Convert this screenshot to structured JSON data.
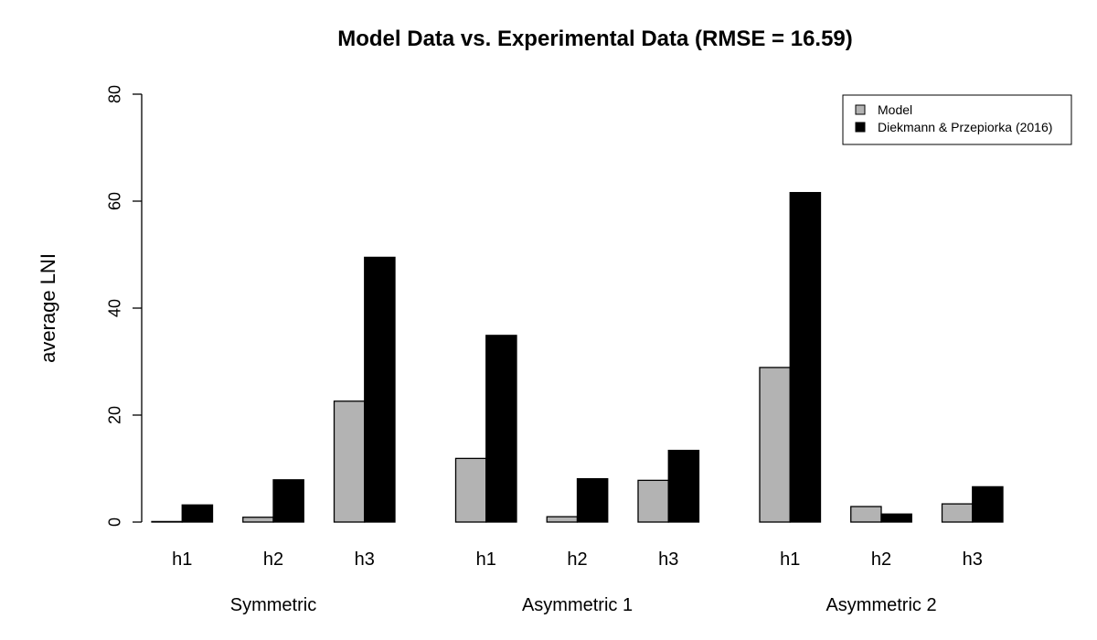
{
  "chart_data": {
    "type": "bar",
    "title": "Model Data vs. Experimental Data (RMSE = 16.59)",
    "xlabel": "",
    "ylabel": "average LNI",
    "ylim": [
      0,
      80
    ],
    "yticks": [
      0,
      20,
      40,
      60,
      80
    ],
    "groups": [
      {
        "label": "Symmetric",
        "categories": [
          "h1",
          "h2",
          "h3"
        ]
      },
      {
        "label": "Asymmetric 1",
        "categories": [
          "h1",
          "h2",
          "h3"
        ]
      },
      {
        "label": "Asymmetric 2",
        "categories": [
          "h1",
          "h2",
          "h3"
        ]
      }
    ],
    "series": [
      {
        "name": "Model",
        "color": "#b3b3b3",
        "values": [
          0.1,
          0.9,
          22.6,
          11.9,
          1.0,
          7.8,
          28.9,
          2.9,
          3.4
        ]
      },
      {
        "name": "Diekmann & Przepiorka (2016)",
        "color": "#000000",
        "values": [
          3.2,
          7.9,
          49.5,
          34.9,
          8.1,
          13.4,
          61.6,
          1.5,
          6.6
        ]
      }
    ],
    "legend_position": "top-right",
    "grid": false
  }
}
